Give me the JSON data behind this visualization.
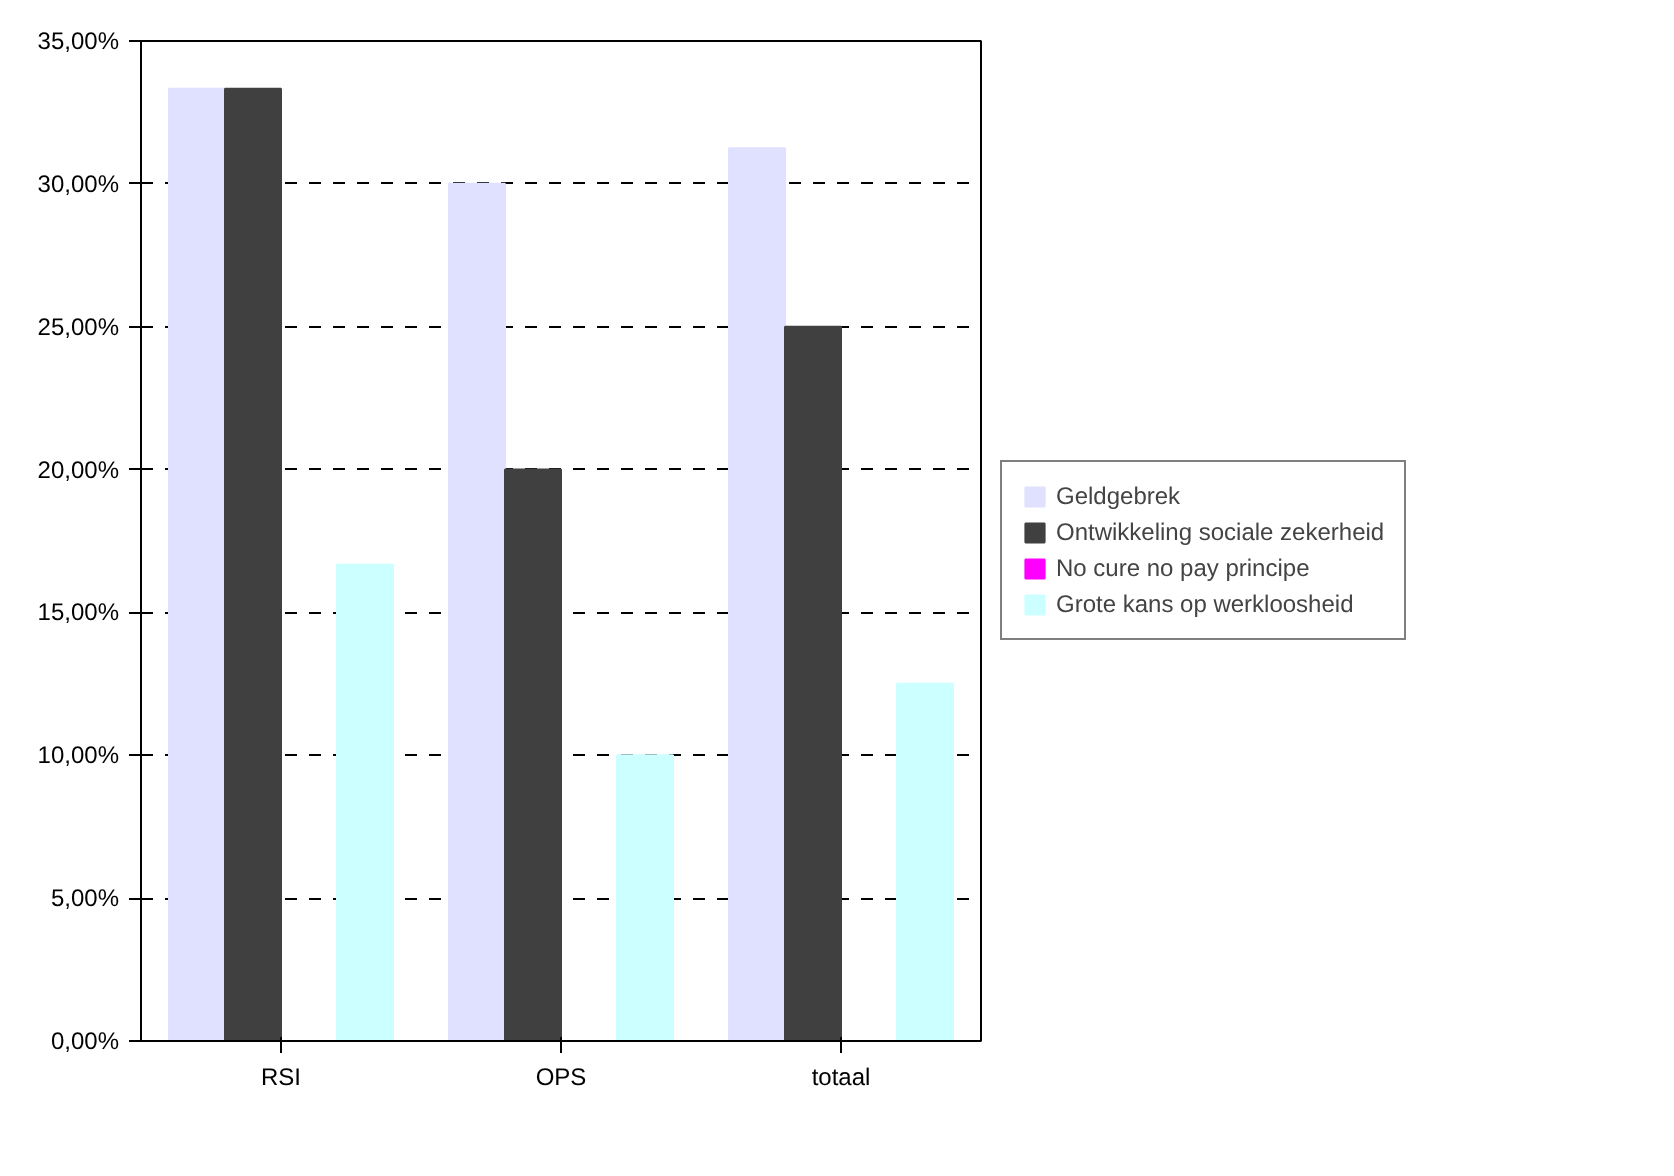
{
  "chart_data": {
    "type": "bar",
    "categories": [
      "RSI",
      "OPS",
      "totaal"
    ],
    "series": [
      {
        "name": "Geldgebrek",
        "color": "#e0e0ff",
        "values": [
          33.33,
          30,
          31.25
        ]
      },
      {
        "name": "Ontwikkeling sociale zekerheid",
        "color": "#404040",
        "values": [
          33.33,
          20,
          25
        ]
      },
      {
        "name": "No cure no pay principe",
        "color": "#ff00ff",
        "values": [
          0,
          0,
          0
        ]
      },
      {
        "name": "Grote kans op werkloosheid",
        "color": "#ccffff",
        "values": [
          16.67,
          10,
          12.5
        ]
      }
    ],
    "ylim": [
      0,
      35
    ],
    "yticks": [
      {
        "value": 0,
        "label": "0,00%"
      },
      {
        "value": 5,
        "label": "5,00%"
      },
      {
        "value": 10,
        "label": "10,00%"
      },
      {
        "value": 15,
        "label": "15,00%"
      },
      {
        "value": 20,
        "label": "20,00%"
      },
      {
        "value": 25,
        "label": "25,00%"
      },
      {
        "value": 30,
        "label": "30,00%"
      },
      {
        "value": 35,
        "label": "35,00%"
      }
    ],
    "grid": "y",
    "legend": "right"
  }
}
